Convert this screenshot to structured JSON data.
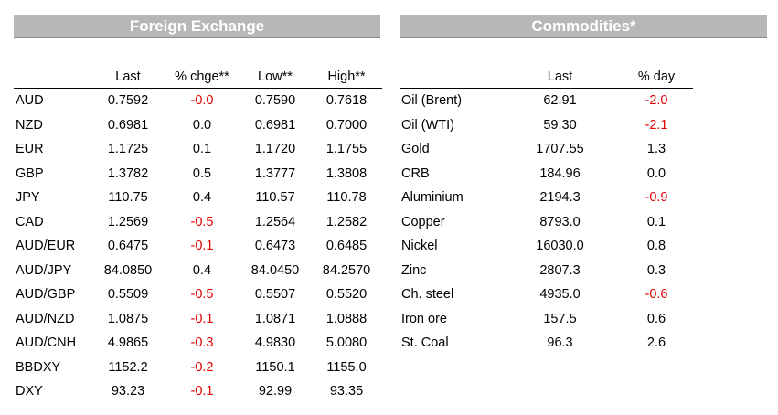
{
  "fx": {
    "title": "Foreign Exchange",
    "headers": [
      "",
      "Last",
      "% chge**",
      "Low**",
      "High**"
    ],
    "rows": [
      [
        "AUD",
        "0.7592",
        "-0.0",
        "0.7590",
        "0.7618"
      ],
      [
        "NZD",
        "0.6981",
        "0.0",
        "0.6981",
        "0.7000"
      ],
      [
        "EUR",
        "1.1725",
        "0.1",
        "1.1720",
        "1.1755"
      ],
      [
        "GBP",
        "1.3782",
        "0.5",
        "1.3777",
        "1.3808"
      ],
      [
        "JPY",
        "110.75",
        "0.4",
        "110.57",
        "110.78"
      ],
      [
        "CAD",
        "1.2569",
        "-0.5",
        "1.2564",
        "1.2582"
      ],
      [
        "AUD/EUR",
        "0.6475",
        "-0.1",
        "0.6473",
        "0.6485"
      ],
      [
        "AUD/JPY",
        "84.0850",
        "0.4",
        "84.0450",
        "84.2570"
      ],
      [
        "AUD/GBP",
        "0.5509",
        "-0.5",
        "0.5507",
        "0.5520"
      ],
      [
        "AUD/NZD",
        "1.0875",
        "-0.1",
        "1.0871",
        "1.0888"
      ],
      [
        "AUD/CNH",
        "4.9865",
        "-0.3",
        "4.9830",
        "5.0080"
      ],
      [
        "BBDXY",
        "1152.2",
        "-0.2",
        "1150.1",
        "1155.0"
      ],
      [
        "DXY",
        "93.23",
        "-0.1",
        "92.99",
        "93.35"
      ]
    ]
  },
  "commodities": {
    "title": "Commodities*",
    "headers": [
      "",
      "Last",
      "% day"
    ],
    "rows": [
      [
        "Oil (Brent)",
        "62.91",
        "-2.0"
      ],
      [
        "Oil (WTI)",
        "59.30",
        "-2.1"
      ],
      [
        "Gold",
        "1707.55",
        "1.3"
      ],
      [
        "CRB",
        "184.96",
        "0.0"
      ],
      [
        "Aluminium",
        "2194.3",
        "-0.9"
      ],
      [
        "Copper",
        "8793.0",
        "0.1"
      ],
      [
        "Nickel",
        "16030.0",
        "0.8"
      ],
      [
        "Zinc",
        "2807.3",
        "0.3"
      ],
      [
        "Ch. steel",
        "4935.0",
        "-0.6"
      ],
      [
        "Iron ore",
        "157.5",
        "0.6"
      ],
      [
        "St. Coal",
        "96.3",
        "2.6"
      ]
    ]
  },
  "colors": {
    "negative": "#e00000",
    "banner": "#b7b7b7"
  }
}
